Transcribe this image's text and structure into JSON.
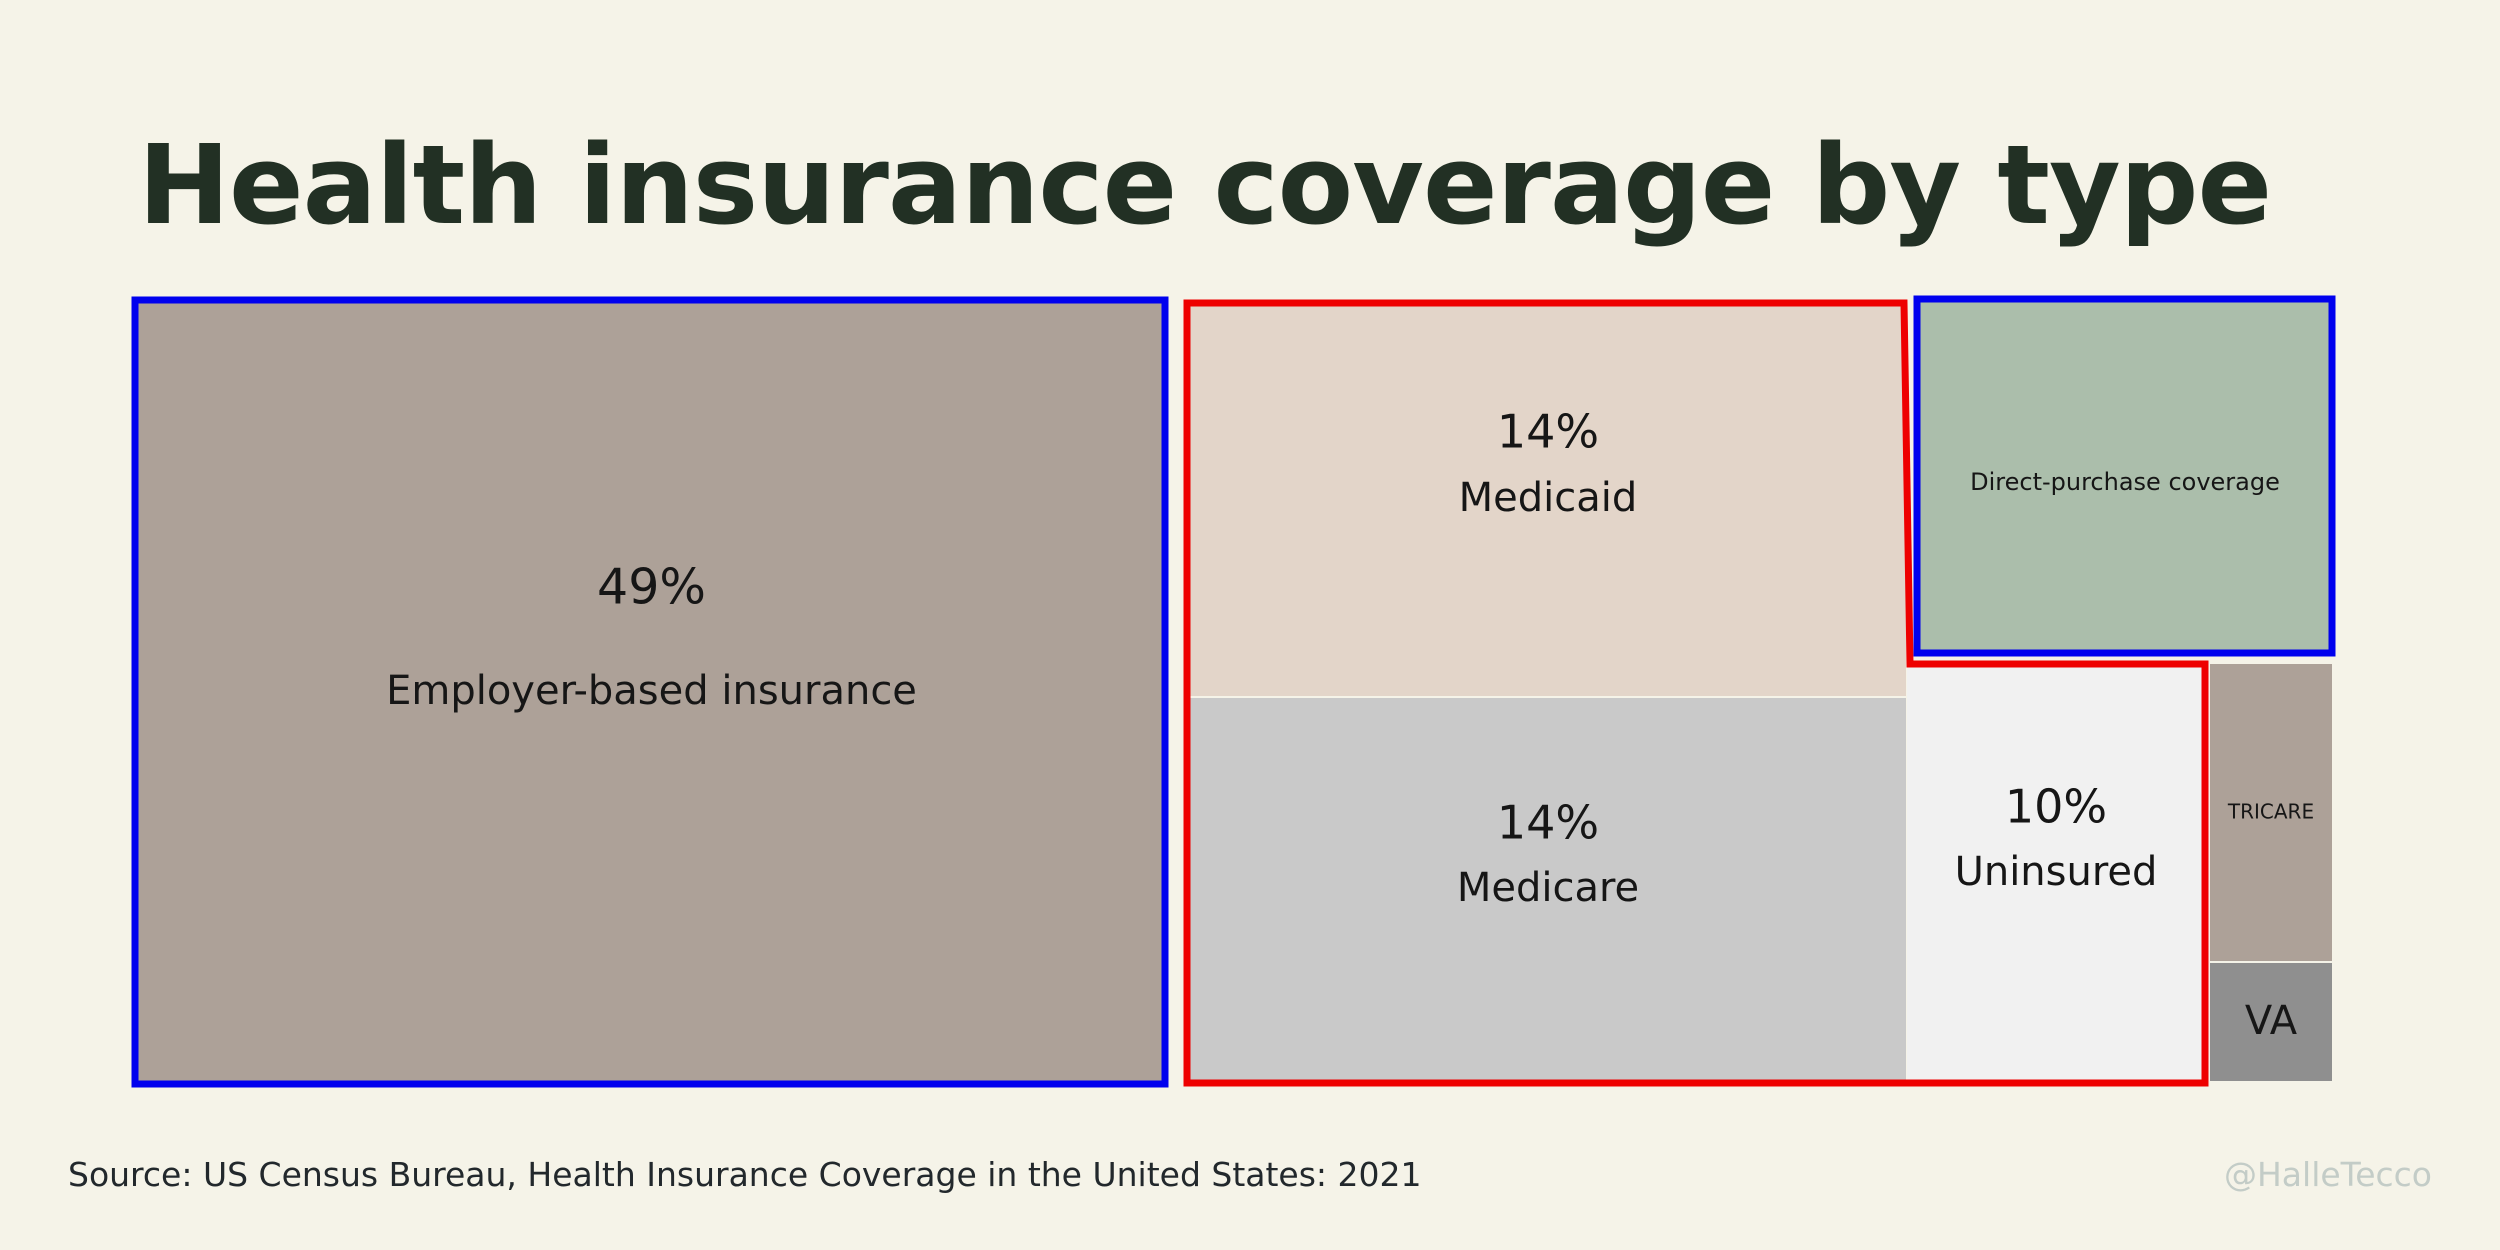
{
  "title": "Health insurance coverage by type",
  "source": "Source: US Census Bureau, Health Insurance Coverage in the United States: 2021",
  "credit": "@HalleTecco",
  "colors": {
    "background": "#f5f3e8",
    "title": "#223024",
    "blue_outline": "#0000ee",
    "red_outline": "#ee0000"
  },
  "chart_data": {
    "type": "treemap",
    "cells": [
      {
        "name": "Employer-based insurance",
        "value": 49,
        "value_label": "49%",
        "color": "#ada198"
      },
      {
        "name": "Medicaid",
        "value": 14,
        "value_label": "14%",
        "color": "#e3d5c9"
      },
      {
        "name": "Medicare",
        "value": 14,
        "value_label": "14%",
        "color": "#c9c9c9"
      },
      {
        "name": "Direct-purchase coverage",
        "value": null,
        "value_label": "",
        "color": "#abbeab"
      },
      {
        "name": "Uninsured",
        "value": 10,
        "value_label": "10%",
        "color": "#f1f1f1"
      },
      {
        "name": "TRICARE",
        "value": null,
        "value_label": "",
        "color": "#ada198"
      },
      {
        "name": "VA",
        "value": null,
        "value_label": "",
        "color": "#8f8f8f"
      }
    ],
    "groups": [
      {
        "outline": "blue",
        "members": [
          "Employer-based insurance",
          "Direct-purchase coverage"
        ]
      },
      {
        "outline": "red",
        "members": [
          "Medicaid",
          "Medicare",
          "Uninsured"
        ]
      }
    ]
  }
}
